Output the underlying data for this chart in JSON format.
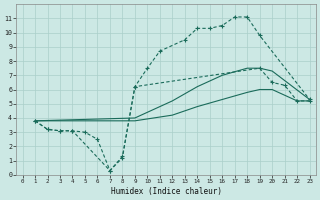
{
  "bg_color": "#cce8e4",
  "grid_color": "#aacfca",
  "line_color": "#1a6b5a",
  "xlabel": "Humidex (Indice chaleur)",
  "xlim": [
    -0.5,
    23.5
  ],
  "ylim": [
    0,
    12
  ],
  "xticks": [
    0,
    1,
    2,
    3,
    4,
    5,
    6,
    7,
    8,
    9,
    10,
    11,
    12,
    13,
    14,
    15,
    16,
    17,
    18,
    19,
    20,
    21,
    22,
    23
  ],
  "yticks": [
    0,
    1,
    2,
    3,
    4,
    5,
    6,
    7,
    8,
    9,
    10,
    11
  ],
  "curve1_x": [
    1,
    2,
    3,
    4,
    7,
    8,
    9,
    10,
    11,
    13,
    14,
    15,
    16,
    17,
    18,
    19,
    23
  ],
  "curve1_y": [
    3.8,
    3.2,
    3.1,
    3.1,
    0.3,
    1.2,
    6.2,
    7.5,
    8.7,
    9.5,
    10.3,
    10.3,
    10.5,
    11.1,
    11.1,
    9.8,
    5.3
  ],
  "curve2_x": [
    1,
    2,
    3,
    4,
    5,
    6,
    7,
    8,
    9,
    19,
    20,
    21,
    22,
    23
  ],
  "curve2_y": [
    3.8,
    3.2,
    3.1,
    3.1,
    3.0,
    2.5,
    0.3,
    1.3,
    6.2,
    7.5,
    6.5,
    6.3,
    5.2,
    5.2
  ],
  "curve3_x": [
    1,
    9,
    12,
    14,
    16,
    18,
    19,
    20,
    23
  ],
  "curve3_y": [
    3.8,
    4.0,
    5.2,
    6.2,
    7.0,
    7.5,
    7.5,
    7.3,
    5.3
  ],
  "curve4_x": [
    1,
    9,
    12,
    14,
    16,
    18,
    19,
    20,
    22,
    23
  ],
  "curve4_y": [
    3.8,
    3.8,
    4.2,
    4.8,
    5.3,
    5.8,
    6.0,
    6.0,
    5.2,
    5.2
  ]
}
